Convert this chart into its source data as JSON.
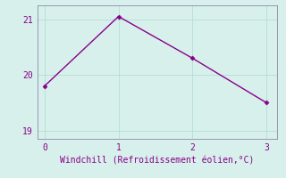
{
  "x": [
    0,
    1,
    2,
    3
  ],
  "y": [
    19.8,
    21.05,
    20.3,
    19.5
  ],
  "line_color": "#880088",
  "marker": "D",
  "markersize": 2.5,
  "linewidth": 1,
  "xlabel": "Windchill (Refroidissement éolien,°C)",
  "xlabel_fontsize": 7,
  "xlabel_color": "#880088",
  "xlim": [
    -0.1,
    3.15
  ],
  "ylim": [
    18.85,
    21.25
  ],
  "yticks": [
    19,
    20,
    21
  ],
  "xticks": [
    0,
    1,
    2,
    3
  ],
  "tick_fontsize": 7,
  "tick_color": "#880088",
  "bg_color": "#d8f0ec",
  "grid_color": "#b5ddd5",
  "grid_linewidth": 0.6,
  "spine_color": "#8888aa",
  "figsize": [
    3.2,
    2.0
  ],
  "dpi": 100
}
